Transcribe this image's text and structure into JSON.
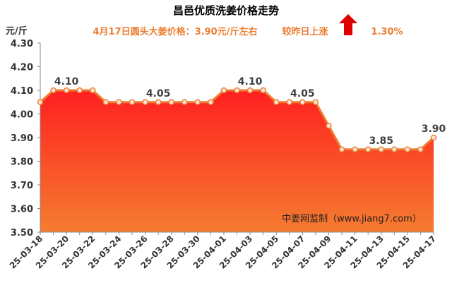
{
  "chart_data": {
    "type": "area",
    "title": "昌邑优质洗姜价格走势",
    "subtitle": "4月17日圆头大姜价格：3.90元/斤左右",
    "change_label": "较昨日上涨",
    "change_value": "1.30%",
    "change_direction": "up",
    "ylabel": "元/斤",
    "ylim": [
      3.5,
      4.3
    ],
    "yticks": [
      "3.50",
      "3.60",
      "3.70",
      "3.80",
      "3.90",
      "4.00",
      "4.10",
      "4.20",
      "4.30"
    ],
    "grid": false,
    "x": [
      "25-03-18",
      "25-03-19",
      "25-03-20",
      "25-03-21",
      "25-03-22",
      "25-03-23",
      "25-03-24",
      "25-03-25",
      "25-03-26",
      "25-03-27",
      "25-03-28",
      "25-03-29",
      "25-03-30",
      "25-03-31",
      "25-04-01",
      "25-04-02",
      "25-04-03",
      "25-04-04",
      "25-04-05",
      "25-04-06",
      "25-04-07",
      "25-04-08",
      "25-04-09",
      "25-04-10",
      "25-04-11",
      "25-04-12",
      "25-04-13",
      "25-04-14",
      "25-04-15",
      "25-04-16",
      "25-04-17"
    ],
    "xtick_labels": [
      "25-03-18",
      "25-03-20",
      "25-03-22",
      "25-03-24",
      "25-03-26",
      "25-03-28",
      "25-03-30",
      "25-04-01",
      "25-04-03",
      "25-04-05",
      "25-04-07",
      "25-04-09",
      "25-04-11",
      "25-04-13",
      "25-04-15",
      "25-04-17"
    ],
    "series": [
      {
        "values": [
          4.05,
          4.1,
          4.1,
          4.1,
          4.1,
          4.05,
          4.05,
          4.05,
          4.05,
          4.05,
          4.05,
          4.05,
          4.05,
          4.05,
          4.1,
          4.1,
          4.1,
          4.1,
          4.05,
          4.05,
          4.05,
          4.05,
          3.95,
          3.85,
          3.85,
          3.85,
          3.85,
          3.85,
          3.85,
          3.85,
          3.9
        ]
      }
    ],
    "data_labels": [
      {
        "index": 2,
        "text": "4.10"
      },
      {
        "index": 9,
        "text": "4.05"
      },
      {
        "index": 16,
        "text": "4.10"
      },
      {
        "index": 20,
        "text": "4.05"
      },
      {
        "index": 26,
        "text": "3.85"
      },
      {
        "index": 30,
        "text": "3.90"
      }
    ],
    "watermark": "中姜网监制（www.jiang7.com）",
    "colors": {
      "line": "#ed7d31",
      "marker_fill": "#fbe5d6",
      "fill_top": "#ff2020",
      "fill_bottom": "#f57c30",
      "arrow": "#e00000",
      "subtitle": "#ed7d31"
    }
  }
}
